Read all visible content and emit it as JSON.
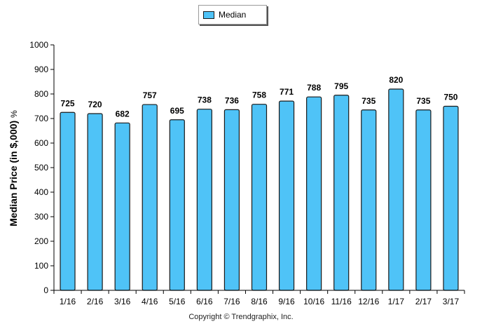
{
  "chart_data": {
    "type": "bar",
    "categories": [
      "1/16",
      "2/16",
      "3/16",
      "4/16",
      "5/16",
      "6/16",
      "7/16",
      "8/16",
      "9/16",
      "10/16",
      "11/16",
      "12/16",
      "1/17",
      "2/17",
      "3/17"
    ],
    "series": [
      {
        "name": "Median",
        "values": [
          725,
          720,
          682,
          757,
          695,
          738,
          736,
          758,
          771,
          788,
          795,
          735,
          820,
          735,
          750
        ]
      }
    ],
    "ylabel": "Median Price (in $,000)",
    "ylabel_suffix": "%",
    "ylim": [
      0,
      1000
    ],
    "yticks": [
      0,
      100,
      200,
      300,
      400,
      500,
      600,
      700,
      800,
      900,
      1000
    ],
    "legend_position": "top-center",
    "bar_color": "#4fc3f7",
    "bar_outline": "#1a1a1a",
    "data_labels": true
  },
  "footer": {
    "copyright": "Copyright © Trendgraphix, Inc."
  }
}
